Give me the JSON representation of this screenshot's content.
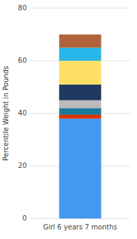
{
  "chart_data": {
    "type": "bar",
    "stacked": true,
    "y_label": "Percentile Weight in Pounds",
    "categories": [
      "Girl 6 years 7 months"
    ],
    "series": [
      {
        "color": "#4499EE",
        "values": [
          38.0
        ]
      },
      {
        "color": "#DD3300",
        "values": [
          1.5
        ]
      },
      {
        "color": "#1A7A99",
        "values": [
          2.5
        ]
      },
      {
        "color": "#BBBBBB",
        "values": [
          3.0
        ]
      },
      {
        "color": "#1E3A5F",
        "values": [
          6.0
        ]
      },
      {
        "color": "#FFE066",
        "values": [
          9.0
        ]
      },
      {
        "color": "#29B6E8",
        "values": [
          5.0
        ]
      },
      {
        "color": "#B0633A",
        "values": [
          5.0
        ]
      }
    ],
    "ylim": [
      0,
      80
    ],
    "yticks": [
      0,
      20,
      40,
      60,
      80
    ],
    "grid": true
  }
}
